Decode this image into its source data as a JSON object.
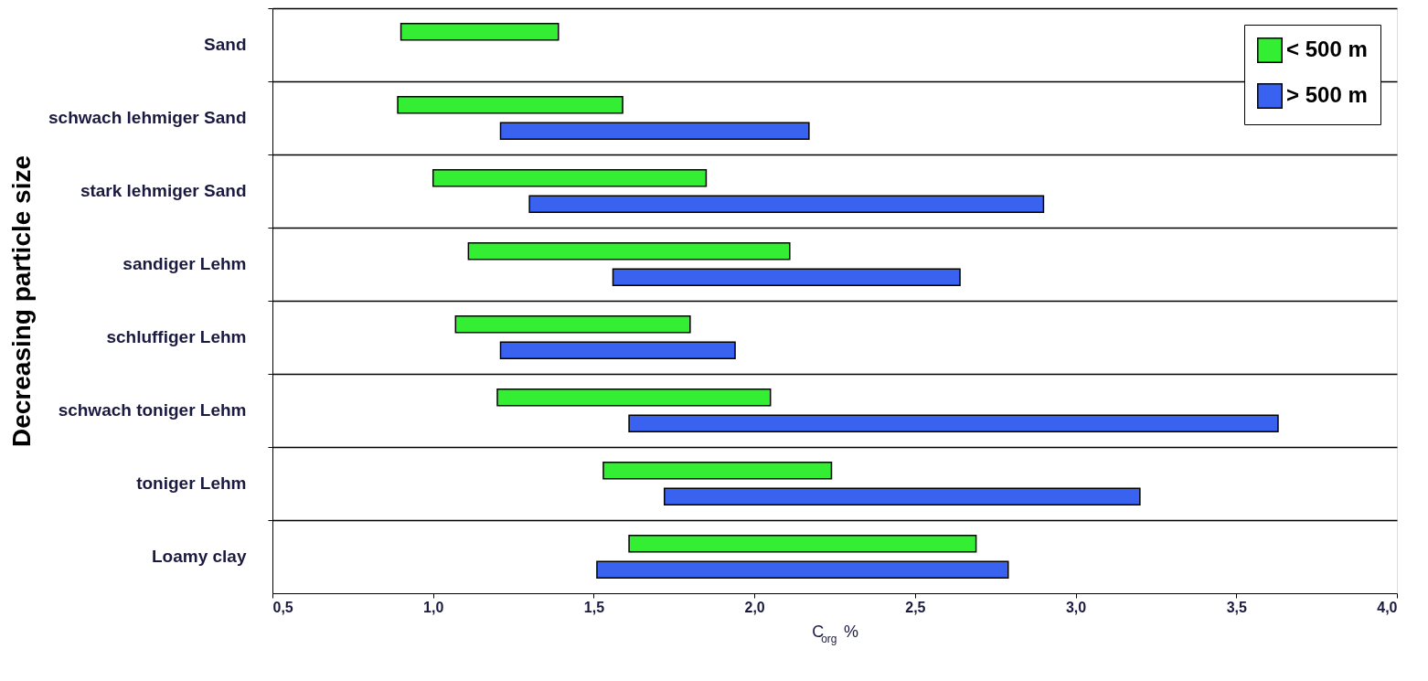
{
  "chart_data": {
    "type": "bar",
    "orientation": "horizontal",
    "categories": [
      "Sand",
      "schwach lehmiger Sand",
      "stark lehmiger Sand",
      "sandiger Lehm",
      "schluffiger Lehm",
      "schwach toniger Lehm",
      "toniger Lehm",
      "Loamy clay"
    ],
    "series": [
      {
        "name": "< 500 m",
        "color": "#33ee33",
        "base": [
          0.9,
          0.89,
          1.0,
          1.11,
          1.07,
          1.2,
          1.53,
          1.61
        ],
        "values": [
          0.49,
          0.7,
          0.85,
          1.0,
          0.73,
          0.85,
          0.71,
          1.08
        ]
      },
      {
        "name": "> 500 m",
        "color": "#3a62f0",
        "base": [
          null,
          1.21,
          1.3,
          1.56,
          1.21,
          1.61,
          1.72,
          1.51
        ],
        "values": [
          null,
          0.96,
          1.6,
          1.08,
          0.73,
          2.02,
          1.48,
          1.28
        ]
      }
    ],
    "xlim": [
      0.5,
      4.0
    ],
    "xticks": [
      {
        "value": 0.5,
        "label": "0,5"
      },
      {
        "value": 1.0,
        "label": "1,0"
      },
      {
        "value": 1.5,
        "label": "1,5"
      },
      {
        "value": 2.0,
        "label": "2,0"
      },
      {
        "value": 2.5,
        "label": "2,5"
      },
      {
        "value": 3.0,
        "label": "3,0"
      },
      {
        "value": 3.5,
        "label": "3,5"
      },
      {
        "value": 4.0,
        "label": "4,0"
      }
    ],
    "xlabel": "C$_{org}$ %",
    "ylabel": "Decreasing particle size",
    "grid": "y",
    "legend": "top right"
  }
}
